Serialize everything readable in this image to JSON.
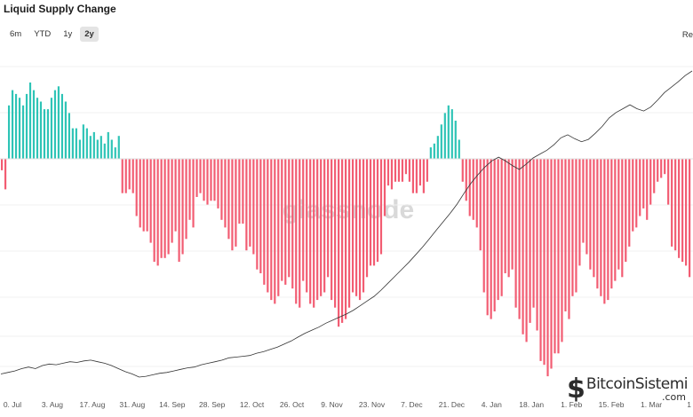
{
  "title": "Liquid Supply Change",
  "range_buttons": [
    {
      "label": "6m",
      "active": false
    },
    {
      "label": "YTD",
      "active": false
    },
    {
      "label": "1y",
      "active": false
    },
    {
      "label": "2y",
      "active": true
    }
  ],
  "reset_label": "Re",
  "watermark": "glassnode",
  "logo": {
    "mark": "$",
    "name": "BitcoinSistemi",
    "domain": ".com"
  },
  "colors": {
    "positive": "#2ec4b6",
    "negative": "#f25c72",
    "price_line": "#333333",
    "zero_line": "#e0e0e0"
  },
  "chart_data": {
    "type": "bar",
    "x_tick_labels": [
      "0. Jul",
      "3. Aug",
      "17. Aug",
      "31. Aug",
      "14. Sep",
      "28. Sep",
      "12. Oct",
      "26. Oct",
      "9. Nov",
      "23. Nov",
      "7. Dec",
      "21. Dec",
      "4. Jan",
      "18. Jan",
      "1. Feb",
      "15. Feb",
      "1. Mar",
      "1"
    ],
    "series": [
      {
        "values": [
          -0.3,
          -0.8,
          1.4,
          1.8,
          1.7,
          1.6,
          1.4,
          1.7,
          2.0,
          1.8,
          1.6,
          1.5,
          1.3,
          1.3,
          1.6,
          1.8,
          1.9,
          1.7,
          1.5,
          1.2,
          0.8,
          0.8,
          0.5,
          0.9,
          0.8,
          0.6,
          0.7,
          0.5,
          0.6,
          0.4,
          0.7,
          0.5,
          0.3,
          0.6,
          -0.9,
          -0.9,
          -0.8,
          -0.9,
          -1.5,
          -1.8,
          -1.9,
          -1.9,
          -2.2,
          -2.7,
          -2.8,
          -2.6,
          -2.6,
          -2.5,
          -2.2,
          -1.9,
          -2.7,
          -2.5,
          -2.1,
          -1.6,
          -1.8,
          -1.0,
          -0.9,
          -1.1,
          -1.2,
          -1.1,
          -1.1,
          -1.3,
          -1.6,
          -1.8,
          -2.1,
          -2.4,
          -2.3,
          -1.7,
          -1.7,
          -2.4,
          -2.3,
          -2.5,
          -2.9,
          -3.0,
          -3.3,
          -3.5,
          -3.7,
          -3.8,
          -3.6,
          -3.2,
          -3.3,
          -3.1,
          -3.4,
          -3.8,
          -3.9,
          -3.2,
          -3.5,
          -3.8,
          -3.9,
          -3.7,
          -3.6,
          -3.5,
          -3.1,
          -3.7,
          -3.9,
          -4.4,
          -4.3,
          -4.2,
          -3.9,
          -3.5,
          -3.6,
          -3.7,
          -3.5,
          -3.1,
          -2.8,
          -2.8,
          -2.7,
          -2.5,
          -1.5,
          -0.7,
          -0.8,
          -0.6,
          -0.6,
          -0.6,
          -0.4,
          -0.6,
          -0.9,
          -0.9,
          -0.7,
          -0.9,
          -0.6,
          0.3,
          0.4,
          0.6,
          0.9,
          1.2,
          1.4,
          1.3,
          1.0,
          0.5,
          -0.6,
          -1.1,
          -1.5,
          -1.6,
          -1.8,
          -2.4,
          -3.5,
          -4.1,
          -4.2,
          -4.0,
          -3.7,
          -3.6,
          -3.0,
          -3.1,
          -2.9,
          -3.9,
          -4.2,
          -4.6,
          -4.8,
          -4.3,
          -3.9,
          -4.5,
          -5.3,
          -5.4,
          -5.7,
          -5.5,
          -5.1,
          -5.1,
          -4.8,
          -4.0,
          -4.2,
          -3.6,
          -3.5,
          -2.8,
          -2.2,
          -2.5,
          -2.9,
          -3.1,
          -3.4,
          -3.6,
          -3.8,
          -3.7,
          -3.4,
          -3.2,
          -2.9,
          -3.1,
          -2.7,
          -2.3,
          -1.9,
          -1.8,
          -1.5,
          -1.3,
          -1.6,
          -1.2,
          -0.9,
          -0.6,
          -0.5,
          -0.4,
          -1.2,
          -2.3,
          -2.4,
          -2.6,
          -2.7,
          -2.8,
          -3.1
        ]
      },
      {
        "values": [
          4990,
          5010,
          5030,
          5060,
          5080,
          5060,
          5100,
          5120,
          5110,
          5130,
          5150,
          5140,
          5160,
          5170,
          5150,
          5130,
          5100,
          5060,
          5020,
          4990,
          4950,
          4960,
          4980,
          5000,
          5010,
          5030,
          5050,
          5070,
          5080,
          5110,
          5130,
          5150,
          5170,
          5200,
          5210,
          5220,
          5230,
          5260,
          5280,
          5310,
          5340,
          5380,
          5420,
          5470,
          5520,
          5560,
          5600,
          5650,
          5690,
          5730,
          5770,
          5820,
          5880,
          5940,
          6000,
          6080,
          6170,
          6260,
          6350,
          6440,
          6540,
          6640,
          6750,
          6860,
          6970,
          7080,
          7200,
          7340,
          7470,
          7580,
          7680,
          7760,
          7810,
          7760,
          7700,
          7650,
          7720,
          7800,
          7850,
          7900,
          7970,
          8060,
          8100,
          8050,
          8010,
          8040,
          8120,
          8210,
          8320,
          8390,
          8440,
          8490,
          8440,
          8410,
          8460,
          8550,
          8650,
          8720,
          8790,
          8870,
          8930
        ]
      }
    ]
  }
}
